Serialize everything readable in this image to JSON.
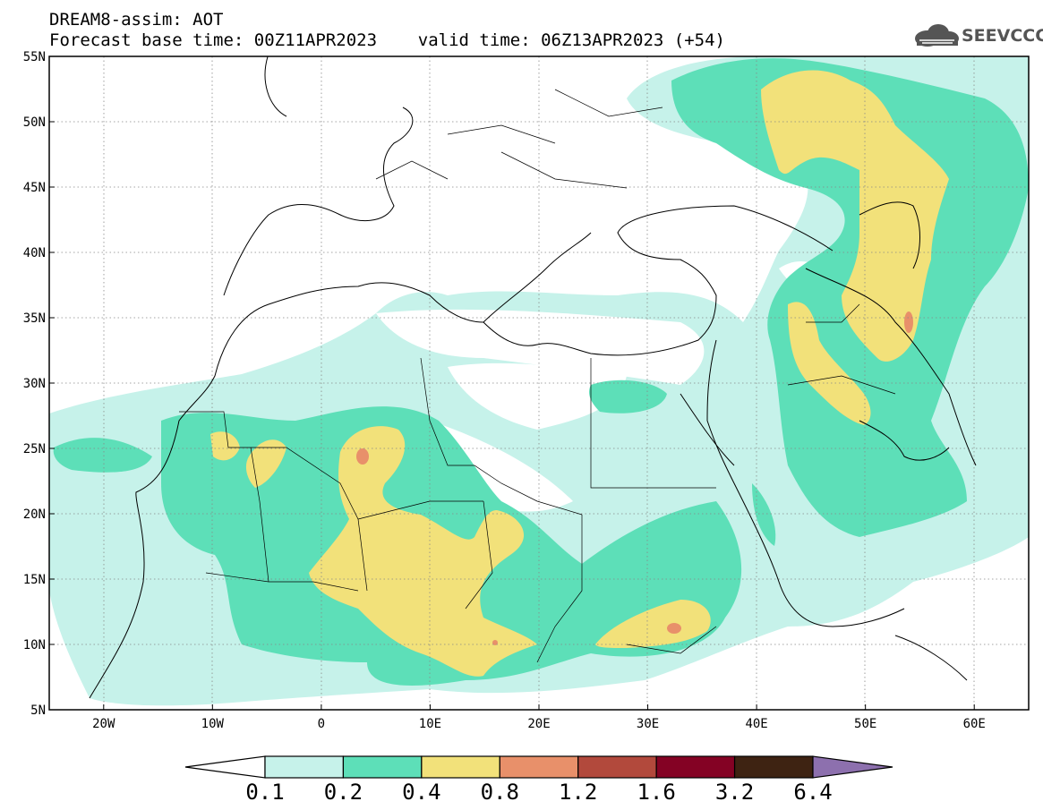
{
  "header": {
    "line1": "DREAM8-assim: AOT",
    "line2": "Forecast base time: 00Z11APR2023    valid time: 06Z13APR2023 (+54)"
  },
  "logo": {
    "text": "SEEVCCC",
    "icon": "cloud-icon"
  },
  "map": {
    "lon_range": [
      -25,
      65
    ],
    "lat_range": [
      5,
      55
    ],
    "lat_ticks": [
      "5N",
      "10N",
      "15N",
      "20N",
      "25N",
      "30N",
      "35N",
      "40N",
      "45N",
      "50N",
      "55N"
    ],
    "lon_ticks": [
      "20W",
      "10W",
      "0",
      "10E",
      "20E",
      "30E",
      "40E",
      "50E",
      "60E"
    ],
    "grid": "dotted"
  },
  "colorbar": {
    "levels": [
      "0.1",
      "0.2",
      "0.4",
      "0.8",
      "1.2",
      "1.6",
      "3.2",
      "6.4"
    ],
    "colors": [
      "#c6f2ea",
      "#5ddfb8",
      "#f2e17a",
      "#e8906a",
      "#b2493c",
      "#840224",
      "#3e2312",
      "#8d70ae"
    ],
    "under_color": "#ffffff",
    "over_color": "#8d70ae"
  }
}
